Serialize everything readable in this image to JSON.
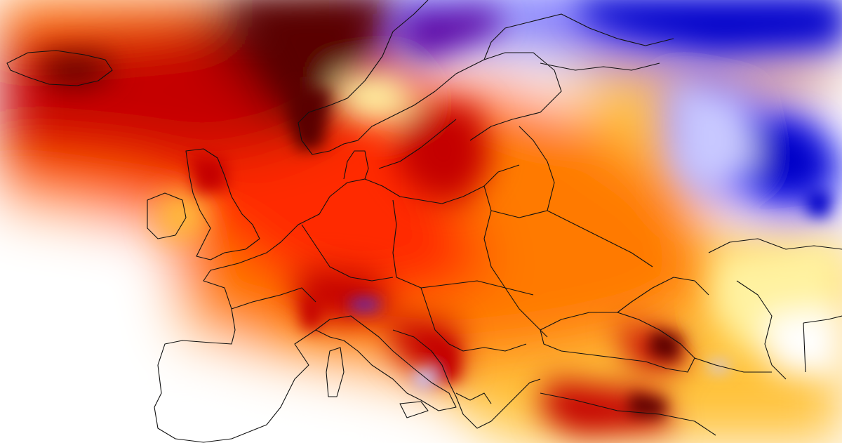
{
  "map": {
    "type": "temperature-anomaly",
    "region": "europe",
    "palette": {
      "extreme_warm": "#5a0000",
      "very_warm": "#c40000",
      "warm": "#ff2a00",
      "mild_warm": "#ff7a00",
      "slight_warm": "#ffc23a",
      "faint_warm": "#fff2a0",
      "neutral": "#ffffff",
      "faint_cool": "#c8c8ff",
      "cool": "#3b3bff",
      "very_cool": "#0000c8",
      "extreme_cool": "#5a00a0"
    },
    "border_color": "#111111",
    "labels_shown": false
  }
}
